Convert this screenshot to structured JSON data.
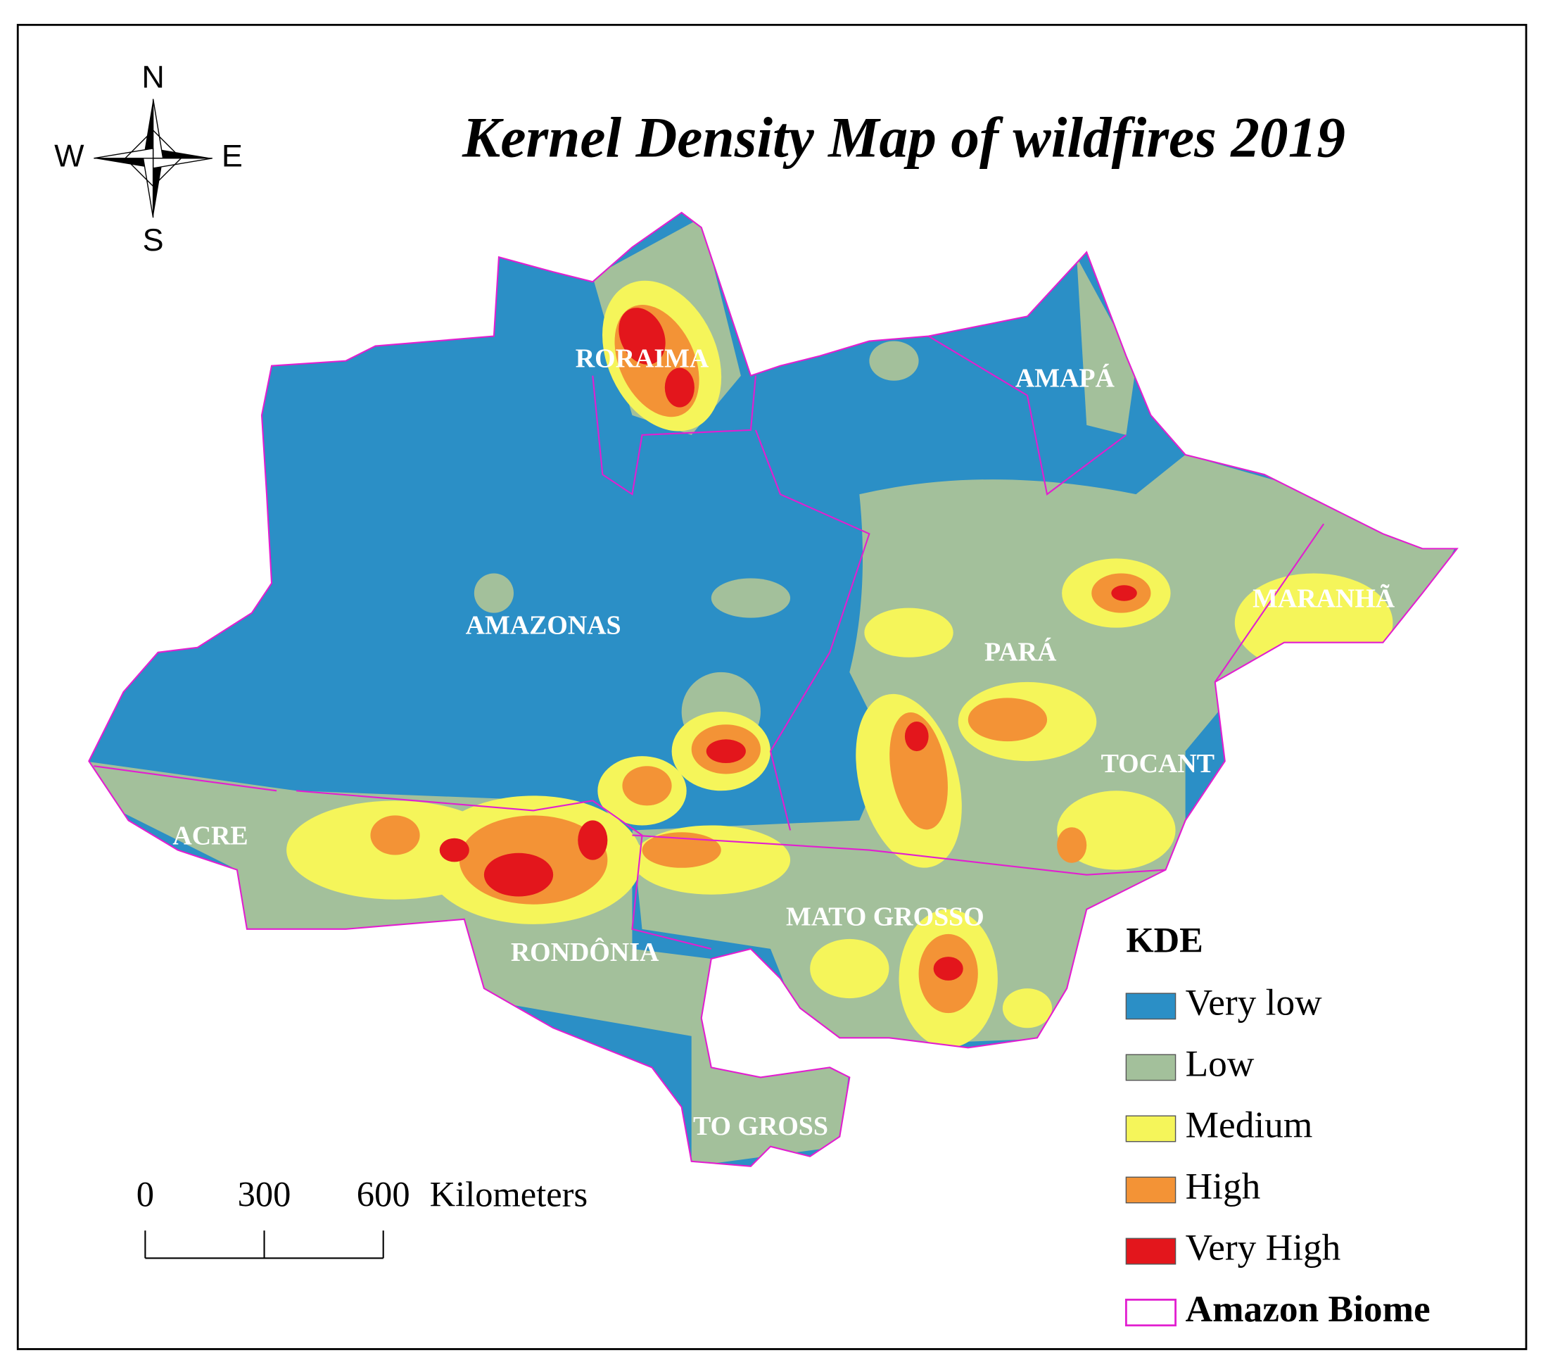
{
  "title": "Kernel Density Map of wildfires 2019",
  "compass": {
    "north": "N",
    "south": "S",
    "west": "W",
    "east": "E"
  },
  "regions": [
    {
      "label": "RORAIMA"
    },
    {
      "label": "AMAPÁ"
    },
    {
      "label": "AMAZONAS"
    },
    {
      "label": "PARÁ"
    },
    {
      "label": "MARANHÃ"
    },
    {
      "label": "TOCANT"
    },
    {
      "label": "ACRE"
    },
    {
      "label": "RONDÔNIA"
    },
    {
      "label": "MATO GROSSO"
    },
    {
      "label": "TO GROSS"
    }
  ],
  "scale_bar": {
    "ticks": [
      0,
      300,
      600
    ],
    "unit": "Kilometers"
  },
  "legend": {
    "title": "KDE",
    "items": [
      {
        "name": "Very low",
        "color": "#2b8fc6"
      },
      {
        "name": "Low",
        "color": "#a3c09b"
      },
      {
        "name": "Medium",
        "color": "#f5f55a"
      },
      {
        "name": "High",
        "color": "#f39336"
      },
      {
        "name": "Very High",
        "color": "#e3161c"
      },
      {
        "name": "Amazon Biome",
        "outline_color": "#e21ed0"
      }
    ]
  }
}
